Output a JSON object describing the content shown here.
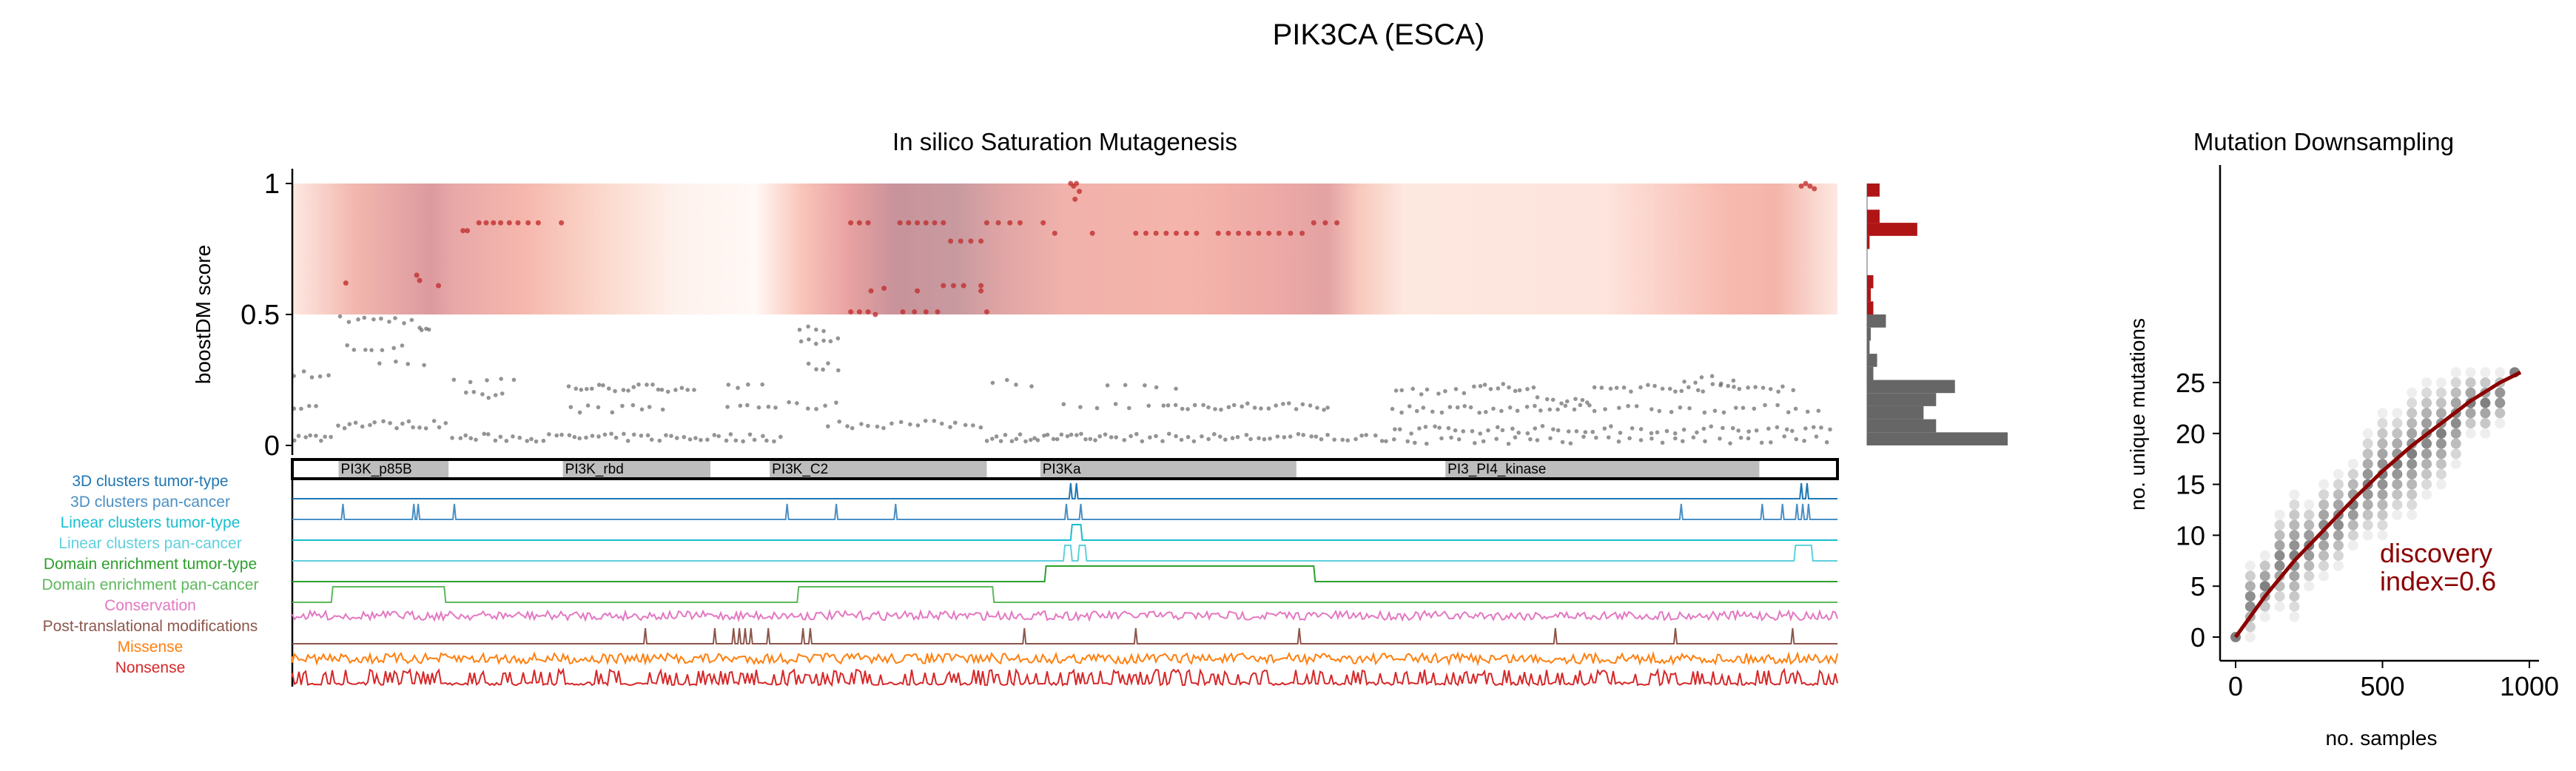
{
  "title": "PIK3CA (ESCA)",
  "chart_data": [
    {
      "type": "scatter",
      "title": "In silico Saturation Mutagenesis",
      "ylabel": "boostDM score",
      "xlim": [
        0,
        1068
      ],
      "ylim": [
        0,
        1
      ],
      "yticks": [
        "0",
        "0.5",
        "1"
      ],
      "driver_threshold": 0.5,
      "domains": [
        {
          "name": "PI3K_p85B",
          "start": 32,
          "end": 108
        },
        {
          "name": "PI3K_rbd",
          "start": 187,
          "end": 289
        },
        {
          "name": "PI3K_C2",
          "start": 330,
          "end": 480
        },
        {
          "name": "PI3Ka",
          "start": 517,
          "end": 694
        },
        {
          "name": "PI3_PI4_kinase",
          "start": 797,
          "end": 1014
        }
      ],
      "driver_points": [
        [
          37,
          0.62
        ],
        [
          86,
          0.65
        ],
        [
          88,
          0.63
        ],
        [
          101,
          0.61
        ],
        [
          118,
          0.82
        ],
        [
          121,
          0.82
        ],
        [
          129,
          0.85
        ],
        [
          134,
          0.85
        ],
        [
          139,
          0.85
        ],
        [
          144,
          0.85
        ],
        [
          150,
          0.85
        ],
        [
          156,
          0.85
        ],
        [
          163,
          0.85
        ],
        [
          170,
          0.85
        ],
        [
          186,
          0.85
        ],
        [
          386,
          0.85
        ],
        [
          392,
          0.85
        ],
        [
          398,
          0.85
        ],
        [
          420,
          0.85
        ],
        [
          426,
          0.85
        ],
        [
          432,
          0.85
        ],
        [
          438,
          0.85
        ],
        [
          444,
          0.85
        ],
        [
          450,
          0.85
        ],
        [
          480,
          0.85
        ],
        [
          488,
          0.85
        ],
        [
          496,
          0.85
        ],
        [
          503,
          0.85
        ],
        [
          519,
          0.85
        ],
        [
          527,
          0.81
        ],
        [
          553,
          0.81
        ],
        [
          583,
          0.81
        ],
        [
          590,
          0.81
        ],
        [
          597,
          0.81
        ],
        [
          604,
          0.81
        ],
        [
          611,
          0.81
        ],
        [
          618,
          0.81
        ],
        [
          625,
          0.81
        ],
        [
          640,
          0.81
        ],
        [
          647,
          0.81
        ],
        [
          654,
          0.81
        ],
        [
          661,
          0.81
        ],
        [
          668,
          0.81
        ],
        [
          675,
          0.81
        ],
        [
          682,
          0.81
        ],
        [
          690,
          0.81
        ],
        [
          698,
          0.81
        ],
        [
          706,
          0.85
        ],
        [
          714,
          0.85
        ],
        [
          722,
          0.85
        ],
        [
          455,
          0.78
        ],
        [
          462,
          0.78
        ],
        [
          469,
          0.78
        ],
        [
          476,
          0.78
        ],
        [
          538,
          1.0
        ],
        [
          540,
          0.99
        ],
        [
          542,
          1.0
        ],
        [
          544,
          0.97
        ],
        [
          541,
          0.94
        ],
        [
          1043,
          0.99
        ],
        [
          1046,
          1.0
        ],
        [
          1049,
          0.99
        ],
        [
          1052,
          0.98
        ],
        [
          386,
          0.51
        ],
        [
          392,
          0.51
        ],
        [
          398,
          0.51
        ],
        [
          403,
          0.5
        ],
        [
          422,
          0.51
        ],
        [
          430,
          0.51
        ],
        [
          438,
          0.51
        ],
        [
          446,
          0.51
        ],
        [
          480,
          0.51
        ],
        [
          400,
          0.59
        ],
        [
          409,
          0.6
        ],
        [
          432,
          0.59
        ],
        [
          450,
          0.61
        ],
        [
          457,
          0.61
        ],
        [
          464,
          0.61
        ],
        [
          476,
          0.61
        ],
        [
          476,
          0.59
        ]
      ],
      "passenger_segments": [
        [
          33,
          86,
          0.48,
          10
        ],
        [
          87,
          96,
          0.44,
          4
        ],
        [
          35,
          80,
          0.37,
          7
        ],
        [
          60,
          96,
          0.32,
          4
        ],
        [
          0,
          30,
          0.27,
          5
        ],
        [
          110,
          160,
          0.25,
          5
        ],
        [
          190,
          280,
          0.22,
          22
        ],
        [
          300,
          330,
          0.22,
          4
        ],
        [
          120,
          150,
          0.19,
          6
        ],
        [
          190,
          260,
          0.14,
          10
        ],
        [
          300,
          380,
          0.15,
          12
        ],
        [
          0,
          20,
          0.15,
          4
        ],
        [
          30,
          110,
          0.08,
          18
        ],
        [
          110,
          340,
          0.03,
          55
        ],
        [
          0,
          30,
          0.03,
          8
        ],
        [
          350,
          370,
          0.45,
          4
        ],
        [
          350,
          380,
          0.4,
          6
        ],
        [
          355,
          380,
          0.3,
          5
        ],
        [
          370,
          480,
          0.08,
          20
        ],
        [
          480,
          560,
          0.03,
          25
        ],
        [
          480,
          520,
          0.24,
          4
        ],
        [
          560,
          620,
          0.22,
          5
        ],
        [
          530,
          600,
          0.15,
          6
        ],
        [
          600,
          720,
          0.15,
          26
        ],
        [
          560,
          760,
          0.03,
          45
        ],
        [
          760,
          820,
          0.21,
          10
        ],
        [
          820,
          860,
          0.22,
          10
        ],
        [
          760,
          900,
          0.14,
          26
        ],
        [
          860,
          900,
          0.17,
          8
        ],
        [
          760,
          880,
          0.06,
          22
        ],
        [
          880,
          1068,
          0.06,
          30
        ],
        [
          900,
          1040,
          0.22,
          28
        ],
        [
          900,
          1060,
          0.14,
          22
        ],
        [
          760,
          1068,
          0.02,
          40
        ],
        [
          960,
          1000,
          0.25,
          6
        ]
      ],
      "histogram": {
        "bins": [
          "0-0.05",
          "0.05-0.1",
          "0.1-0.15",
          "0.15-0.2",
          "0.2-0.25",
          "0.25-0.3",
          "0.3-0.35",
          "0.35-0.4",
          "0.4-0.45",
          "0.45-0.5",
          "0.5-0.55",
          "0.55-0.6",
          "0.6-0.65",
          "0.65-0.7",
          "0.7-0.75",
          "0.75-0.8",
          "0.8-0.85",
          "0.85-0.9",
          "0.9-0.95",
          "0.95-1"
        ],
        "counts": [
          112,
          55,
          45,
          55,
          70,
          5,
          8,
          2,
          3,
          15,
          5,
          3,
          5,
          0,
          0,
          2,
          40,
          10,
          0,
          10
        ]
      },
      "tracks": [
        {
          "label": "3D clusters tumor-type",
          "color": "#1f77b4",
          "kind": "spikes",
          "positions": [
            538,
            542,
            1043,
            1047
          ]
        },
        {
          "label": "3D clusters pan-cancer",
          "color": "#4a8fc4",
          "kind": "spikes",
          "positions": [
            35,
            84,
            87,
            112,
            342,
            376,
            417,
            535,
            545,
            960,
            1016,
            1030,
            1040,
            1044,
            1048
          ]
        },
        {
          "label": "Linear clusters tumor-type",
          "color": "#17becf",
          "kind": "blocks",
          "positions": [
            [
              539,
              545
            ]
          ]
        },
        {
          "label": "Linear clusters pan-cancer",
          "color": "#5fd0de",
          "kind": "blocks",
          "positions": [
            [
              534,
              538
            ],
            [
              544,
              548
            ],
            [
              1039,
              1050
            ]
          ]
        },
        {
          "label": "Domain enrichment tumor-type",
          "color": "#2ca02c",
          "kind": "blocks",
          "positions": [
            [
              521,
              706
            ]
          ]
        },
        {
          "label": "Domain enrichment pan-cancer",
          "color": "#5cb85c",
          "kind": "blocks",
          "positions": [
            [
              28,
              105
            ],
            [
              350,
              484
            ]
          ]
        },
        {
          "label": "Conservation",
          "color": "#e377c2",
          "kind": "noise"
        },
        {
          "label": "Post-translational modifications",
          "color": "#8c564b",
          "kind": "spikes",
          "positions": [
            244,
            292,
            305,
            309,
            313,
            317,
            329,
            353,
            358,
            506,
            583,
            696,
            873,
            956,
            1037
          ]
        },
        {
          "label": "Missense",
          "color": "#ff7f0e",
          "kind": "noise"
        },
        {
          "label": "Nonsense",
          "color": "#d62728",
          "kind": "noise"
        }
      ]
    },
    {
      "type": "scatter",
      "title": "Mutation Downsampling",
      "xlabel": "no. samples",
      "ylabel": "no. unique mutations",
      "xlim": [
        -60,
        1030
      ],
      "ylim": [
        -1.5,
        27.5
      ],
      "xticks": [
        "0",
        "500",
        "1000"
      ],
      "yticks": [
        "0",
        "5",
        "10",
        "15",
        "20",
        "25"
      ],
      "columns": [
        [
          0,
          0,
          0
        ],
        [
          50,
          0,
          7
        ],
        [
          100,
          2,
          8
        ],
        [
          150,
          3,
          12
        ],
        [
          200,
          2,
          14
        ],
        [
          250,
          5,
          13
        ],
        [
          300,
          6,
          15
        ],
        [
          350,
          7,
          16
        ],
        [
          400,
          9,
          17
        ],
        [
          450,
          10,
          20
        ],
        [
          500,
          10,
          22
        ],
        [
          550,
          12,
          22
        ],
        [
          600,
          12,
          24
        ],
        [
          650,
          14,
          25
        ],
        [
          700,
          15,
          25
        ],
        [
          750,
          17,
          26
        ],
        [
          800,
          20,
          26
        ],
        [
          850,
          20,
          26
        ],
        [
          900,
          21,
          26
        ],
        [
          950,
          26,
          26
        ]
      ],
      "fit_line": [
        [
          0,
          0
        ],
        [
          100,
          4
        ],
        [
          200,
          7.5
        ],
        [
          300,
          10.5
        ],
        [
          400,
          13.5
        ],
        [
          500,
          16.3
        ],
        [
          600,
          18.8
        ],
        [
          700,
          21
        ],
        [
          800,
          23.2
        ],
        [
          900,
          25
        ],
        [
          970,
          26
        ]
      ],
      "annotation": [
        "discovery",
        "index=0.6"
      ],
      "line_color": "#8b0000"
    }
  ]
}
